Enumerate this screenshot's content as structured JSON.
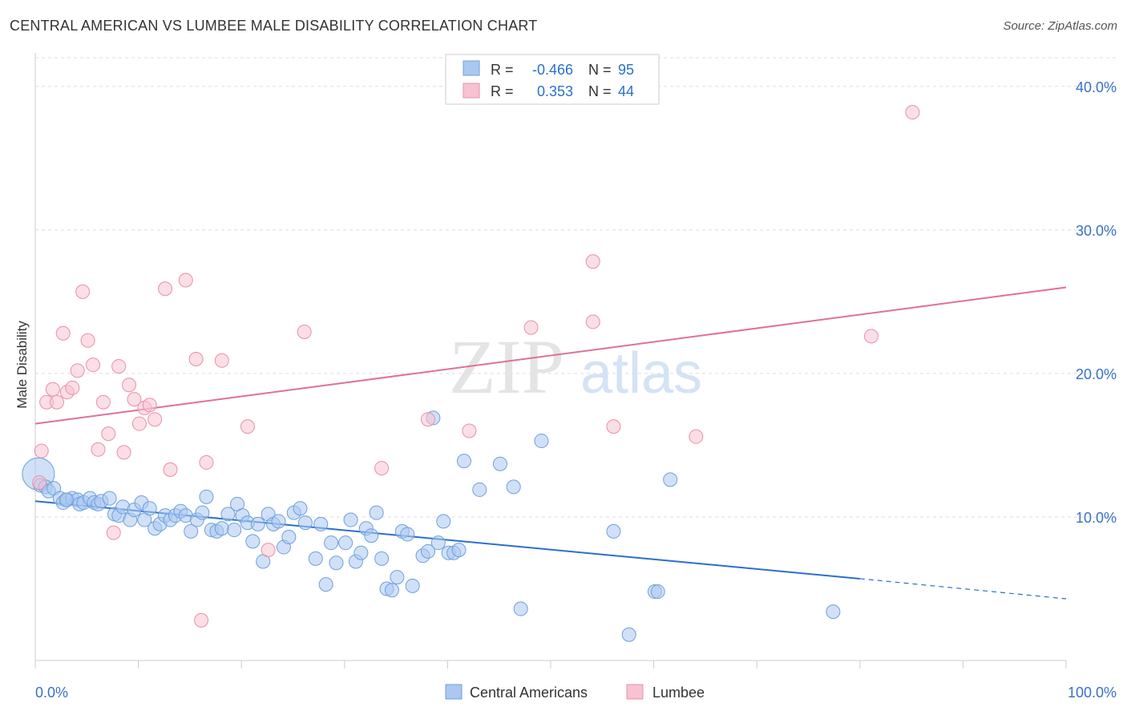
{
  "title": "CENTRAL AMERICAN VS LUMBEE MALE DISABILITY CORRELATION CHART",
  "source": "Source: ZipAtlas.com",
  "watermark": {
    "zip": "ZIP",
    "atlas": "atlas"
  },
  "colors": {
    "blue_fill": "#aac8f0",
    "blue_stroke": "#6f9fdc",
    "blue_line": "#2a6fd0",
    "pink_fill": "#f7c2d2",
    "pink_stroke": "#e890aa",
    "pink_line": "#e07098",
    "tick_label": "#3a70c8",
    "grid": "#dddddd"
  },
  "legend": {
    "rows": [
      {
        "r_label": "R =",
        "r_value": "-0.466",
        "n_label": "N =",
        "n_value": "95"
      },
      {
        "r_label": "R =",
        "r_value": "0.353",
        "n_label": "N =",
        "n_value": "44"
      }
    ],
    "bottom": [
      "Central Americans",
      "Lumbee"
    ]
  },
  "chart_data": {
    "type": "scatter",
    "xlabel": "",
    "ylabel": "Male Disability",
    "xlim": [
      0,
      100
    ],
    "ylim": [
      0,
      42
    ],
    "x_tick_labels": [
      "0.0%",
      "100.0%"
    ],
    "y_ticks": [
      10,
      20,
      30,
      40
    ],
    "y_tick_labels": [
      "10.0%",
      "20.0%",
      "30.0%",
      "40.0%"
    ],
    "grid": true,
    "legend_position": "top-center",
    "series": [
      {
        "name": "Central Americans",
        "r": -0.466,
        "n": 95,
        "trend": {
          "x0": 0,
          "y0": 11.1,
          "x1": 80,
          "y1": 5.7,
          "dash_to_x": 100,
          "dash_to_y": 4.3
        },
        "points": [
          [
            0.3,
            13.0
          ],
          [
            0.5,
            12.2
          ],
          [
            1.0,
            12.1
          ],
          [
            1.3,
            11.8
          ],
          [
            1.8,
            12.0
          ],
          [
            2.4,
            11.3
          ],
          [
            2.7,
            11.0
          ],
          [
            3.1,
            11.2
          ],
          [
            3.6,
            11.3
          ],
          [
            4.1,
            11.2
          ],
          [
            4.3,
            10.9
          ],
          [
            4.7,
            11.0
          ],
          [
            5.3,
            11.3
          ],
          [
            5.7,
            11.0
          ],
          [
            6.1,
            10.9
          ],
          [
            6.4,
            11.1
          ],
          [
            7.2,
            11.3
          ],
          [
            7.7,
            10.2
          ],
          [
            8.1,
            10.1
          ],
          [
            8.5,
            10.7
          ],
          [
            9.2,
            9.8
          ],
          [
            9.6,
            10.5
          ],
          [
            10.3,
            11.0
          ],
          [
            10.6,
            9.8
          ],
          [
            11.1,
            10.6
          ],
          [
            11.6,
            9.2
          ],
          [
            12.1,
            9.5
          ],
          [
            12.6,
            10.1
          ],
          [
            13.1,
            9.8
          ],
          [
            13.6,
            10.1
          ],
          [
            14.1,
            10.4
          ],
          [
            14.6,
            10.1
          ],
          [
            15.1,
            9.0
          ],
          [
            15.7,
            9.8
          ],
          [
            16.2,
            10.3
          ],
          [
            16.6,
            11.4
          ],
          [
            17.1,
            9.1
          ],
          [
            17.6,
            9.0
          ],
          [
            18.1,
            9.2
          ],
          [
            18.7,
            10.2
          ],
          [
            19.3,
            9.1
          ],
          [
            19.6,
            10.9
          ],
          [
            20.1,
            10.1
          ],
          [
            20.6,
            9.6
          ],
          [
            21.1,
            8.3
          ],
          [
            21.6,
            9.5
          ],
          [
            22.1,
            6.9
          ],
          [
            22.6,
            10.2
          ],
          [
            23.1,
            9.5
          ],
          [
            23.6,
            9.7
          ],
          [
            24.1,
            7.9
          ],
          [
            24.6,
            8.6
          ],
          [
            25.1,
            10.3
          ],
          [
            25.7,
            10.6
          ],
          [
            26.2,
            9.6
          ],
          [
            27.2,
            7.1
          ],
          [
            27.7,
            9.5
          ],
          [
            28.2,
            5.3
          ],
          [
            28.7,
            8.2
          ],
          [
            29.2,
            6.8
          ],
          [
            30.1,
            8.2
          ],
          [
            30.6,
            9.8
          ],
          [
            31.1,
            6.9
          ],
          [
            31.6,
            7.5
          ],
          [
            32.1,
            9.2
          ],
          [
            32.6,
            8.7
          ],
          [
            33.1,
            10.3
          ],
          [
            33.6,
            7.1
          ],
          [
            34.1,
            5.0
          ],
          [
            34.6,
            4.9
          ],
          [
            35.1,
            5.8
          ],
          [
            35.6,
            9.0
          ],
          [
            36.1,
            8.8
          ],
          [
            36.6,
            5.2
          ],
          [
            37.6,
            7.3
          ],
          [
            38.1,
            7.6
          ],
          [
            39.1,
            8.2
          ],
          [
            39.6,
            9.7
          ],
          [
            40.1,
            7.5
          ],
          [
            40.6,
            7.5
          ],
          [
            41.1,
            7.7
          ],
          [
            38.6,
            16.9
          ],
          [
            41.6,
            13.9
          ],
          [
            43.1,
            11.9
          ],
          [
            45.1,
            13.7
          ],
          [
            46.4,
            12.1
          ],
          [
            47.1,
            3.6
          ],
          [
            49.1,
            15.3
          ],
          [
            56.1,
            9.0
          ],
          [
            57.6,
            1.8
          ],
          [
            60.1,
            4.8
          ],
          [
            60.4,
            4.8
          ],
          [
            61.6,
            12.6
          ],
          [
            77.4,
            3.4
          ],
          [
            3.0,
            11.2
          ]
        ]
      },
      {
        "name": "Lumbee",
        "r": 0.353,
        "n": 44,
        "trend": {
          "x0": 0,
          "y0": 16.5,
          "x1": 100,
          "y1": 26.0
        },
        "points": [
          [
            0.6,
            14.6
          ],
          [
            1.1,
            18.0
          ],
          [
            1.7,
            18.9
          ],
          [
            2.1,
            18.0
          ],
          [
            2.7,
            22.8
          ],
          [
            3.1,
            18.7
          ],
          [
            3.6,
            19.0
          ],
          [
            4.1,
            20.2
          ],
          [
            4.6,
            25.7
          ],
          [
            5.1,
            22.3
          ],
          [
            5.6,
            20.6
          ],
          [
            6.1,
            14.7
          ],
          [
            6.6,
            18.0
          ],
          [
            7.1,
            15.8
          ],
          [
            7.6,
            8.9
          ],
          [
            8.1,
            20.5
          ],
          [
            8.6,
            14.5
          ],
          [
            9.1,
            19.2
          ],
          [
            9.6,
            18.2
          ],
          [
            10.1,
            16.5
          ],
          [
            10.6,
            17.6
          ],
          [
            11.1,
            17.8
          ],
          [
            11.6,
            16.8
          ],
          [
            12.6,
            25.9
          ],
          [
            13.1,
            13.3
          ],
          [
            14.6,
            26.5
          ],
          [
            15.6,
            21.0
          ],
          [
            16.1,
            2.8
          ],
          [
            16.6,
            13.8
          ],
          [
            18.1,
            20.9
          ],
          [
            20.6,
            16.3
          ],
          [
            22.6,
            7.7
          ],
          [
            26.1,
            22.9
          ],
          [
            33.6,
            13.4
          ],
          [
            38.1,
            16.8
          ],
          [
            42.1,
            16.0
          ],
          [
            48.1,
            23.2
          ],
          [
            54.1,
            23.6
          ],
          [
            54.1,
            27.8
          ],
          [
            56.1,
            16.3
          ],
          [
            64.1,
            15.6
          ],
          [
            81.1,
            22.6
          ],
          [
            85.1,
            38.2
          ],
          [
            0.4,
            12.4
          ]
        ]
      }
    ]
  }
}
